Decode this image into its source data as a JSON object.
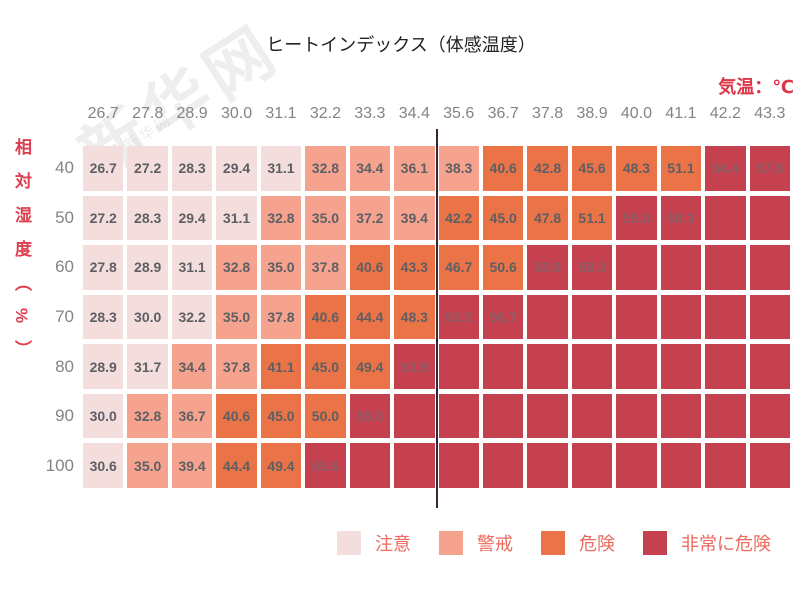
{
  "title": "ヒートインデックス（体感温度）",
  "unit_label": "気温：℃",
  "y_axis_label": "相対湿度（%）",
  "watermark": "新华网",
  "colors": {
    "caution": "#f4dedd",
    "warning": "#f5a38f",
    "danger": "#ea7347",
    "extreme": "#c5414f",
    "cell_text": "#5d5f63",
    "cell_text_on_extreme": "#8c5e66",
    "header_text": "#828487",
    "accent_red": "#dc3648",
    "legend_text": "#ec6a5e",
    "divider": "#3b2433",
    "title_text": "#222326"
  },
  "legend": [
    {
      "label": "注意",
      "level": "c"
    },
    {
      "label": "警戒",
      "level": "w"
    },
    {
      "label": "危険",
      "level": "d"
    },
    {
      "label": "非常に危険",
      "level": "e"
    }
  ],
  "level_names": {
    "c": "caution",
    "w": "warning",
    "d": "danger",
    "e": "extreme"
  },
  "chart_data": {
    "type": "heatmap",
    "title": "ヒートインデックス（体感温度）",
    "xlabel": "気温：℃",
    "ylabel": "相対湿度（%）",
    "legend_position": "bottom",
    "columns": [
      "26.7",
      "27.8",
      "28.9",
      "30.0",
      "31.1",
      "32.2",
      "33.3",
      "34.4",
      "35.6",
      "36.7",
      "37.8",
      "38.9",
      "40.0",
      "41.1",
      "42.2",
      "43.3"
    ],
    "rows": [
      "40",
      "50",
      "60",
      "70",
      "80",
      "90",
      "100"
    ],
    "values": [
      [
        "26.7",
        "27.2",
        "28.3",
        "29.4",
        "31.1",
        "32.8",
        "34.4",
        "36.1",
        "38.3",
        "40.6",
        "42.8",
        "45.6",
        "48.3",
        "51.1",
        "54.4",
        "57.8"
      ],
      [
        "27.2",
        "28.3",
        "29.4",
        "31.1",
        "32.8",
        "35.0",
        "37.2",
        "39.4",
        "42.2",
        "45.0",
        "47.8",
        "51.1",
        "55.0",
        "58.3",
        "",
        ""
      ],
      [
        "27.8",
        "28.9",
        "31.1",
        "32.8",
        "35.0",
        "37.8",
        "40.6",
        "43.3",
        "46.7",
        "50.6",
        "53.9",
        "58.3",
        "",
        "",
        "",
        ""
      ],
      [
        "28.3",
        "30.0",
        "32.2",
        "35.0",
        "37.8",
        "40.6",
        "44.4",
        "48.3",
        "52.2",
        "56.7",
        "",
        "",
        "",
        "",
        "",
        ""
      ],
      [
        "28.9",
        "31.7",
        "34.4",
        "37.8",
        "41.1",
        "45.0",
        "49.4",
        "53.9",
        "",
        "",
        "",
        "",
        "",
        "",
        "",
        ""
      ],
      [
        "30.0",
        "32.8",
        "36.7",
        "40.6",
        "45.0",
        "50.0",
        "55.0",
        "",
        "",
        "",
        "",
        "",
        "",
        "",
        "",
        ""
      ],
      [
        "30.6",
        "35.0",
        "39.4",
        "44.4",
        "49.4",
        "55.6",
        "",
        "",
        "",
        "",
        "",
        "",
        "",
        "",
        "",
        ""
      ]
    ],
    "levels": [
      "cccccwwwwdddddee",
      "ccccwwwwddddeeee",
      "cccwwwddddeeeeee",
      "cccwwdddeeeeeeee",
      "ccwwdddeeeeeeeee",
      "cwwdddeeeeeeeeee",
      "cwwddeeeeeeeeeee"
    ],
    "divider_after_column_index": 8
  }
}
